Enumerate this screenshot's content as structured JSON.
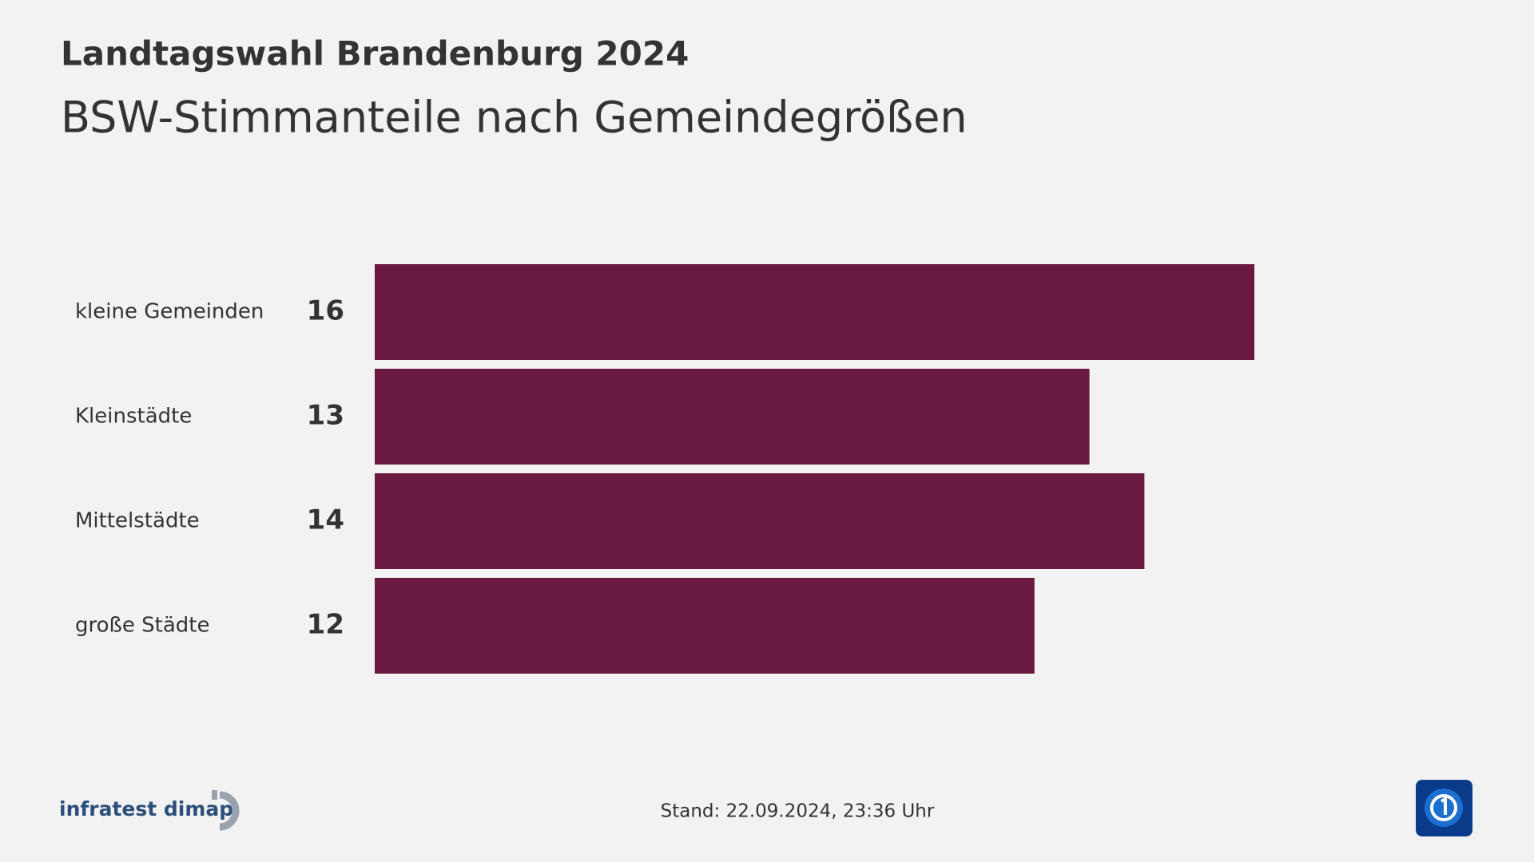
{
  "chart_data": {
    "type": "bar",
    "orientation": "horizontal",
    "title": "Landtagswahl Brandenburg 2024",
    "subtitle": "BSW-Stimmanteile nach Gemeindegrößen",
    "categories": [
      "kleine Gemeinden",
      "Kleinstädte",
      "Mittelstädte",
      "große Städte"
    ],
    "values": [
      16,
      13,
      14,
      12
    ],
    "color": "#6a1940",
    "source": "infratest dimap",
    "timestamp": "Stand:  22.09.2024, 23:36 Uhr"
  }
}
